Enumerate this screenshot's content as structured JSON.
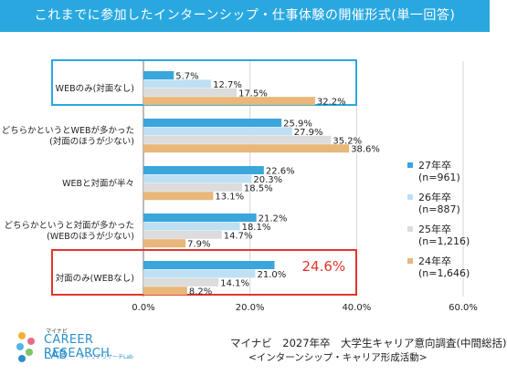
{
  "title": "これまでに参加したインターンシップ・仕事体験の開催形式(単一回答)",
  "colors": {
    "title_bg": "#29a8e0",
    "highlight_blue": "#29a8e0",
    "highlight_red": "#e0362c",
    "series": [
      "#3aa6dc",
      "#bfe0f3",
      "#dcdcdc",
      "#e9b779"
    ]
  },
  "chart_data": {
    "type": "bar",
    "orientation": "horizontal",
    "categories": [
      [
        "WEBのみ(対面なし)"
      ],
      [
        "どちらかというとWEBが多かった",
        "(対面のほうが少ない)"
      ],
      [
        "WEBと対面が半々"
      ],
      [
        "どちらかというと対面が多かった",
        "(WEBのほうが少ない)"
      ],
      [
        "対面のみ(WEBなし)"
      ]
    ],
    "series": [
      {
        "name": "27年卒\n(n=961)",
        "values": [
          5.7,
          25.9,
          22.6,
          21.2,
          24.6
        ]
      },
      {
        "name": "26年卒\n(n=887)",
        "values": [
          12.7,
          27.9,
          20.3,
          18.1,
          21.0
        ]
      },
      {
        "name": "25年卒\n(n=1,216)",
        "values": [
          17.5,
          35.2,
          18.5,
          14.7,
          14.1
        ]
      },
      {
        "name": "24年卒\n(n=1,646)",
        "values": [
          32.2,
          38.6,
          13.1,
          7.9,
          8.2
        ]
      }
    ],
    "xlim": [
      0,
      60
    ],
    "xticks": [
      "0.0%",
      "20.0%",
      "40.0%",
      "60.0%"
    ],
    "value_suffix": "%",
    "highlighted_categories": [
      0,
      4
    ],
    "highlighted_value": {
      "category": 4,
      "series": 0,
      "label": "24.6%"
    },
    "legend_position": "right"
  },
  "footer": {
    "logo_brand": "マイナビ",
    "logo_line1": "CAREER RESEARCH",
    "logo_line2": "LAB",
    "logo_sub": "キャリアリサーチLab",
    "source": "マイナビ　2027年卒　大学生キャリア意向調査(中間総括)",
    "source_sub": "<インターンシップ・キャリア形成活動>"
  }
}
